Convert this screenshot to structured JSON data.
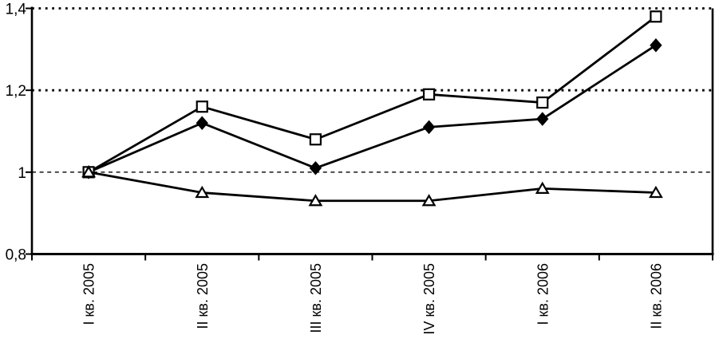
{
  "chart_data": {
    "type": "line",
    "title": "",
    "xlabel": "",
    "ylabel": "",
    "categories": [
      "I кв. 2005",
      "II кв. 2005",
      "III кв. 2005",
      "IV кв. 2005",
      "I кв. 2006",
      "II кв. 2006"
    ],
    "series": [
      {
        "name": "diamond-series",
        "marker": "diamond-filled",
        "values": [
          1.0,
          1.12,
          1.01,
          1.11,
          1.13,
          1.31
        ]
      },
      {
        "name": "square-series",
        "marker": "square-open",
        "values": [
          1.0,
          1.16,
          1.08,
          1.19,
          1.17,
          1.38
        ]
      },
      {
        "name": "triangle-series",
        "marker": "triangle-open",
        "values": [
          1.0,
          0.95,
          0.93,
          0.93,
          0.96,
          0.95
        ]
      }
    ],
    "ylim": [
      0.8,
      1.4
    ],
    "yticks": [
      {
        "value": 0.8,
        "label": "0,8"
      },
      {
        "value": 1.0,
        "label": "1"
      },
      {
        "value": 1.2,
        "label": "1,2"
      },
      {
        "value": 1.4,
        "label": "1,4"
      }
    ],
    "gridlines": [
      {
        "value": 1.0,
        "style": "dashed-light"
      },
      {
        "value": 1.2,
        "style": "dotted-bold"
      },
      {
        "value": 1.4,
        "style": "dotted-bold"
      }
    ],
    "legend_position": "none",
    "grid": "horizontal-only",
    "colors": {
      "stroke": "#000000",
      "background": "#ffffff",
      "marker_open_fill": "#ffffff"
    }
  }
}
